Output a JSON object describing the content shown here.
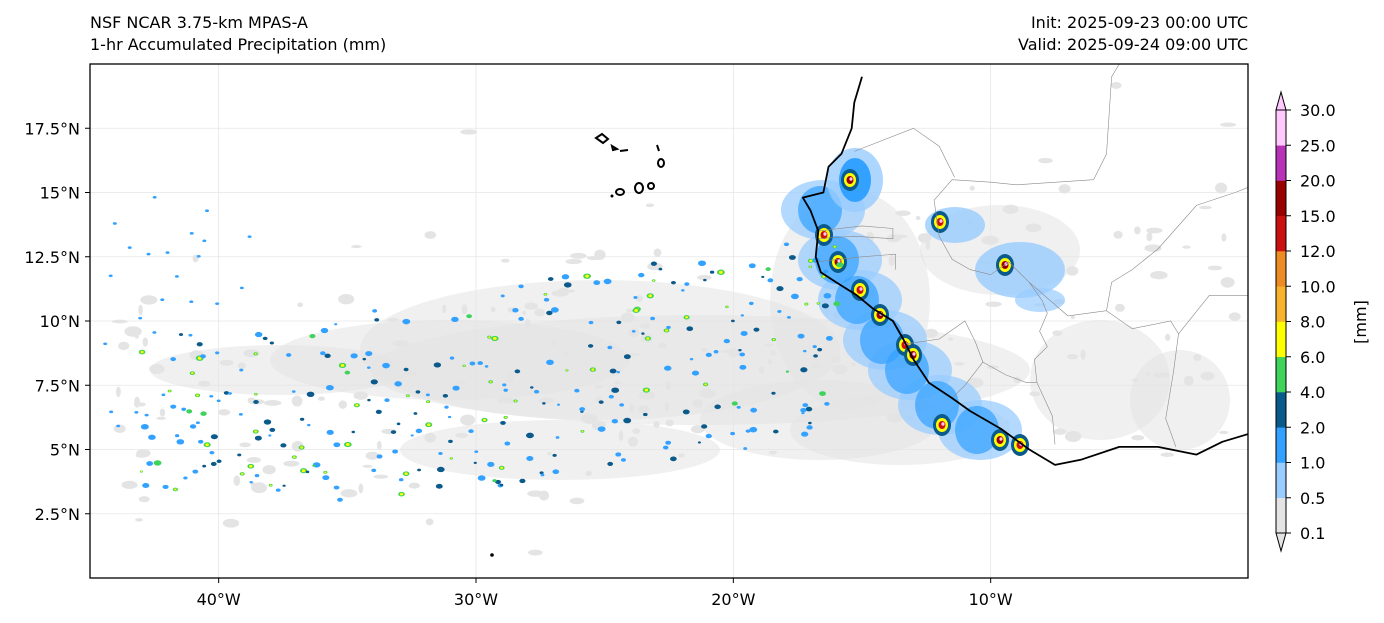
{
  "header": {
    "title_left_1": "NSF NCAR 3.75-km MPAS-A",
    "title_left_2": "1-hr Accumulated Precipitation (mm)",
    "title_right_1": "Init: 2025-09-23 00:00 UTC",
    "title_right_2": "Valid: 2025-09-24 09:00 UTC"
  },
  "map": {
    "lon_range": [
      -45,
      0
    ],
    "lat_range": [
      0,
      20
    ],
    "lat_ticks": [
      {
        "value": 2.5,
        "label": "2.5°N"
      },
      {
        "value": 5,
        "label": "5°N"
      },
      {
        "value": 7.5,
        "label": "7.5°N"
      },
      {
        "value": 10,
        "label": "10°N"
      },
      {
        "value": 12.5,
        "label": "12.5°N"
      },
      {
        "value": 15,
        "label": "15°N"
      },
      {
        "value": 17.5,
        "label": "17.5°N"
      }
    ],
    "lon_ticks": [
      {
        "value": -40,
        "label": "40°W"
      },
      {
        "value": -30,
        "label": "30°W"
      },
      {
        "value": -20,
        "label": "20°W"
      },
      {
        "value": -10,
        "label": "10°W"
      }
    ],
    "grid": true,
    "coastline": [
      [
        -15.0,
        19.5
      ],
      [
        -15.3,
        18.5
      ],
      [
        -15.4,
        17.5
      ],
      [
        -15.8,
        16.5
      ],
      [
        -16.3,
        16.0
      ],
      [
        -16.5,
        15.0
      ],
      [
        -17.3,
        14.8
      ],
      [
        -17.0,
        14.3
      ],
      [
        -16.7,
        13.5
      ],
      [
        -16.8,
        12.5
      ],
      [
        -16.6,
        11.9
      ],
      [
        -16.0,
        11.5
      ],
      [
        -15.2,
        11.0
      ],
      [
        -14.6,
        10.5
      ],
      [
        -13.8,
        10.0
      ],
      [
        -13.4,
        9.3
      ],
      [
        -13.0,
        8.5
      ],
      [
        -12.4,
        7.6
      ],
      [
        -11.5,
        7.0
      ],
      [
        -10.8,
        6.5
      ],
      [
        -9.6,
        5.8
      ],
      [
        -8.5,
        5.0
      ],
      [
        -7.5,
        4.4
      ],
      [
        -6.5,
        4.6
      ],
      [
        -5.0,
        5.1
      ],
      [
        -3.5,
        5.1
      ],
      [
        -2.0,
        4.8
      ],
      [
        -1.0,
        5.3
      ],
      [
        0,
        5.6
      ]
    ],
    "island_groups": [
      "Cabo Verde"
    ],
    "borders": [
      [
        [
          -12.2,
          14.7
        ],
        [
          -12.0,
          13.3
        ],
        [
          -11.5,
          12.4
        ],
        [
          -10.8,
          12.0
        ],
        [
          -10.0,
          11.8
        ],
        [
          -9.3,
          12.3
        ],
        [
          -8.5,
          11.5
        ],
        [
          -8.0,
          10.8
        ],
        [
          -7.8,
          10.3
        ],
        [
          -8.1,
          9.6
        ],
        [
          -7.8,
          9.0
        ],
        [
          -8.3,
          8.5
        ],
        [
          -8.2,
          7.6
        ],
        [
          -7.6,
          6.3
        ],
        [
          -7.5,
          5.2
        ]
      ],
      [
        [
          -16.7,
          13.5
        ],
        [
          -15.0,
          13.7
        ],
        [
          -13.8,
          13.6
        ],
        [
          -13.8,
          13.2
        ],
        [
          -15.3,
          13.3
        ],
        [
          -16.8,
          13.2
        ]
      ],
      [
        [
          -16.8,
          12.3
        ],
        [
          -15.0,
          12.5
        ],
        [
          -13.7,
          12.6
        ],
        [
          -13.7,
          12.0
        ]
      ],
      [
        [
          -13.3,
          9.1
        ],
        [
          -12.0,
          9.3
        ],
        [
          -11.0,
          10.0
        ],
        [
          -10.6,
          9.2
        ],
        [
          -10.3,
          8.4
        ],
        [
          -11.0,
          7.5
        ],
        [
          -11.5,
          7.0
        ]
      ],
      [
        [
          -10.3,
          8.4
        ],
        [
          -9.4,
          7.9
        ],
        [
          -8.6,
          7.6
        ],
        [
          -8.2,
          7.6
        ]
      ],
      [
        [
          -5.5,
          10.4
        ],
        [
          -4.5,
          9.7
        ],
        [
          -3.0,
          10.0
        ],
        [
          -2.7,
          9.5
        ],
        [
          -2.9,
          8.0
        ],
        [
          -3.2,
          6.2
        ],
        [
          -2.8,
          5.1
        ]
      ],
      [
        [
          -12.2,
          14.7
        ],
        [
          -11.5,
          15.5
        ],
        [
          -10.0,
          15.4
        ],
        [
          -9.0,
          15.3
        ],
        [
          -6.0,
          15.5
        ],
        [
          -5.5,
          16.5
        ],
        [
          -5.3,
          19.5
        ],
        [
          -5.0,
          20
        ]
      ],
      [
        [
          -11.4,
          15.6
        ],
        [
          -12.0,
          16.8
        ],
        [
          -13.0,
          17.5
        ],
        [
          -15.3,
          16.6
        ]
      ],
      [
        [
          -5.5,
          10.4
        ],
        [
          -5.3,
          11.5
        ],
        [
          -4.5,
          12.0
        ],
        [
          -3.5,
          12.8
        ],
        [
          -2.0,
          14.5
        ],
        [
          -0.5,
          15.0
        ],
        [
          0,
          15.2
        ]
      ],
      [
        [
          -2.7,
          9.5
        ],
        [
          -1.5,
          11.0
        ],
        [
          0,
          11.0
        ]
      ],
      [
        [
          -8.5,
          11.5
        ],
        [
          -7.0,
          10.2
        ],
        [
          -5.5,
          10.4
        ]
      ]
    ]
  },
  "legend": {
    "label": "[mm]",
    "ticks": [
      "0.1",
      "0.5",
      "1.0",
      "2.0",
      "4.0",
      "6.0",
      "8.0",
      "10.0",
      "12.0",
      "15.0",
      "20.0",
      "25.0",
      "30.0"
    ],
    "colors": [
      "#e4e4e4",
      "#99ccff",
      "#33a1ff",
      "#0a5a8c",
      "#3ed35a",
      "#ffff00",
      "#f7b22e",
      "#ec8c22",
      "#cc1010",
      "#990000",
      "#b832b8",
      "#ffc8ff"
    ]
  }
}
